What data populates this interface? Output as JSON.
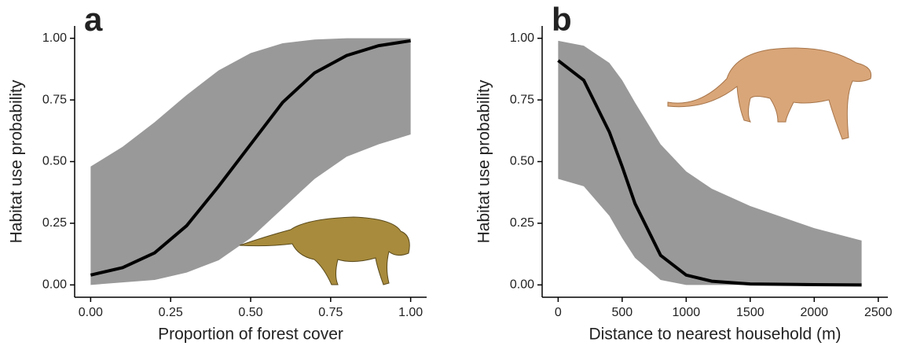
{
  "chart_data": [
    {
      "type": "line",
      "panel_label": "a",
      "x_label": "Proportion of forest cover",
      "y_label": "Habitat use probability",
      "x": [
        0,
        0.1,
        0.2,
        0.3,
        0.4,
        0.5,
        0.6,
        0.7,
        0.8,
        0.9,
        1.0
      ],
      "values": [
        0.04,
        0.07,
        0.13,
        0.24,
        0.4,
        0.57,
        0.74,
        0.86,
        0.93,
        0.97,
        0.99
      ],
      "upper": [
        0.48,
        0.56,
        0.66,
        0.77,
        0.87,
        0.94,
        0.98,
        0.995,
        1.0,
        1.0,
        1.0
      ],
      "lower": [
        0.0,
        0.01,
        0.02,
        0.05,
        0.1,
        0.19,
        0.31,
        0.43,
        0.52,
        0.57,
        0.61
      ],
      "color": "#000000",
      "band_color": "#999999",
      "xlim": [
        -0.05,
        1.05
      ],
      "ylim": [
        -0.05,
        1.05
      ],
      "xticks": [
        {
          "value": 0,
          "label": "0.00"
        },
        {
          "value": 0.25,
          "label": "0.25"
        },
        {
          "value": 0.5,
          "label": "0.50"
        },
        {
          "value": 0.75,
          "label": "0.75"
        },
        {
          "value": 1,
          "label": "1.00"
        }
      ],
      "yticks": [
        {
          "value": 0,
          "label": "0.00"
        },
        {
          "value": 0.25,
          "label": "0.25"
        },
        {
          "value": 0.5,
          "label": "0.50"
        },
        {
          "value": 0.75,
          "label": "0.75"
        },
        {
          "value": 1,
          "label": "1.00"
        }
      ]
    },
    {
      "type": "line",
      "panel_label": "b",
      "x_label": "Distance to nearest household (m)",
      "y_label": "Habitat use probability",
      "x": [
        0,
        200,
        400,
        500,
        600,
        800,
        1000,
        1200,
        1500,
        2000,
        2370
      ],
      "values": [
        0.91,
        0.83,
        0.62,
        0.48,
        0.33,
        0.12,
        0.04,
        0.015,
        0.004,
        0.001,
        0.0
      ],
      "upper": [
        0.99,
        0.97,
        0.9,
        0.83,
        0.74,
        0.57,
        0.46,
        0.39,
        0.32,
        0.23,
        0.18
      ],
      "lower": [
        0.43,
        0.4,
        0.28,
        0.19,
        0.11,
        0.02,
        0.0,
        0.0,
        0.0,
        0.0,
        0.0
      ],
      "color": "#000000",
      "band_color": "#999999",
      "xlim": [
        -125,
        2575
      ],
      "ylim": [
        -0.05,
        1.05
      ],
      "xticks": [
        0,
        500,
        1000,
        1500,
        2000,
        2500
      ],
      "yticks": [
        {
          "value": 0,
          "label": "0.00"
        },
        {
          "value": 0.25,
          "label": "0.25"
        },
        {
          "value": 0.5,
          "label": "0.50"
        },
        {
          "value": 0.75,
          "label": "0.75"
        },
        {
          "value": 1,
          "label": "1.00"
        }
      ]
    }
  ]
}
